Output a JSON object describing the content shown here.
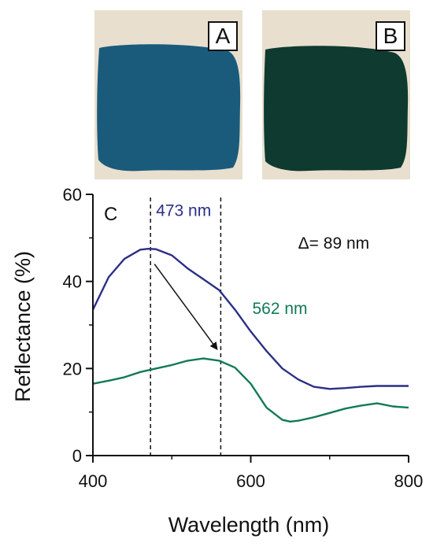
{
  "panels": [
    {
      "label": "A",
      "swatch_color": "#1a5b7c",
      "background_color": "#e9dfcf"
    },
    {
      "label": "B",
      "swatch_color": "#0f3a30",
      "background_color": "#e9dfcf"
    }
  ],
  "chart_data": {
    "type": "line",
    "panel_label": "C",
    "xlabel": "Wavelength (nm)",
    "ylabel": "Reflectance (%)",
    "xlim": [
      400,
      800
    ],
    "ylim": [
      0,
      60
    ],
    "x_ticks": [
      400,
      600,
      800
    ],
    "y_ticks": [
      0,
      20,
      40,
      60
    ],
    "x_minor_ticks": [
      500,
      700
    ],
    "y_minor_ticks": [
      10,
      30,
      50
    ],
    "grid": false,
    "series": [
      {
        "color": "#2b2f86",
        "x": [
          400,
          420,
          440,
          460,
          470,
          480,
          500,
          520,
          540,
          560,
          580,
          600,
          620,
          640,
          660,
          680,
          700,
          720,
          740,
          760,
          780,
          800
        ],
        "y": [
          33.5,
          41.0,
          45.2,
          47.3,
          47.5,
          47.4,
          46.0,
          43.0,
          40.5,
          38.0,
          33.5,
          28.5,
          24.0,
          20.0,
          17.5,
          15.8,
          15.3,
          15.5,
          15.8,
          16.0,
          16.0,
          16.0
        ]
      },
      {
        "color": "#127a58",
        "x": [
          400,
          420,
          440,
          460,
          480,
          500,
          520,
          540,
          560,
          580,
          600,
          620,
          640,
          650,
          660,
          680,
          700,
          720,
          740,
          760,
          780,
          800
        ],
        "y": [
          16.5,
          17.2,
          18.0,
          19.2,
          20.0,
          20.8,
          21.8,
          22.3,
          21.8,
          20.2,
          16.5,
          11.0,
          8.2,
          7.8,
          8.0,
          8.8,
          9.8,
          10.8,
          11.5,
          12.0,
          11.3,
          11.0
        ]
      }
    ],
    "vlines": [
      473,
      562
    ],
    "annotations": [
      {
        "text": "473 nm",
        "x": 480,
        "y": 55,
        "color": "#2b2f86"
      },
      {
        "text": "562 nm",
        "x": 602,
        "y": 32.5,
        "color": "#127a58"
      },
      {
        "text": "Δ= 89 nm",
        "x": 660,
        "y": 47.5,
        "color": "#111111"
      }
    ],
    "arrow": {
      "from": [
        478,
        44
      ],
      "to": [
        557,
        24.5
      ]
    }
  }
}
